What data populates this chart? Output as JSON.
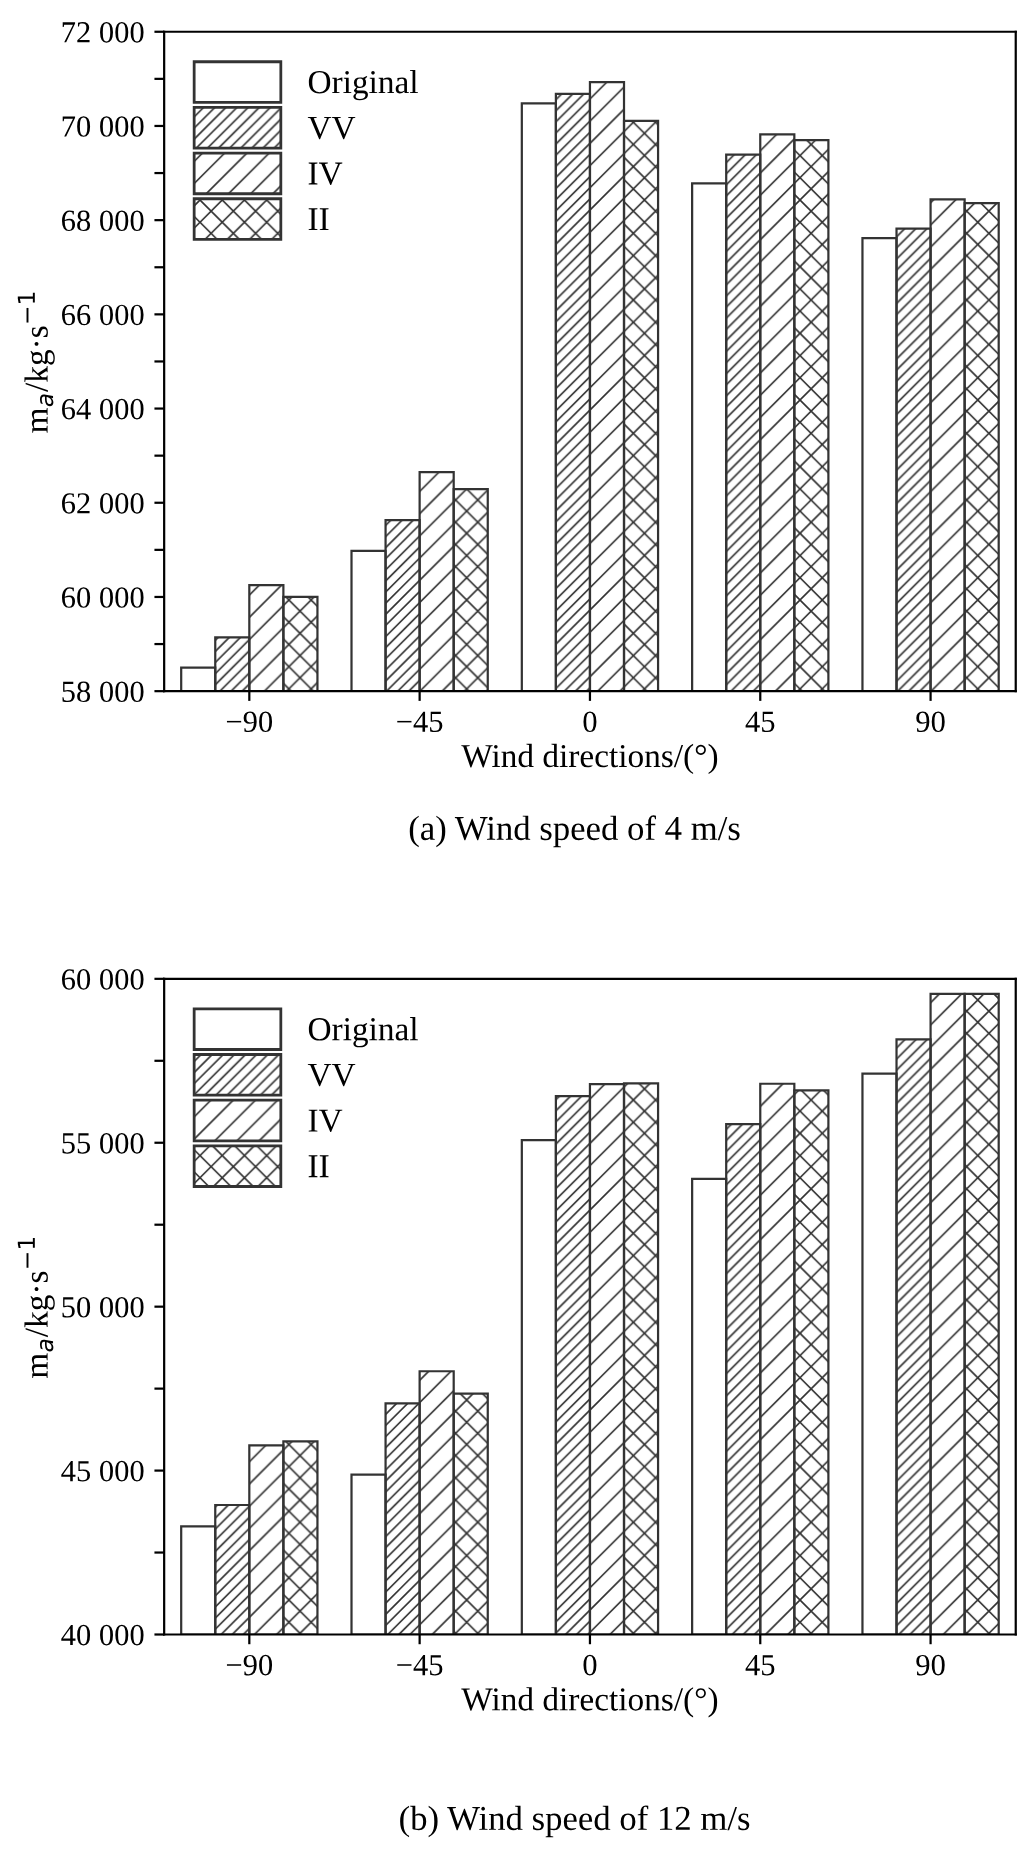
{
  "chart_data": [
    {
      "type": "bar",
      "categories": [
        "−90",
        "−45",
        "0",
        "45",
        "90"
      ],
      "xlabel": "Wind directions/(°)",
      "ylabel": "m$_{a}$/kg·s$^{−1}$",
      "series": [
        {
          "name": "Original",
          "color": "#ffffff",
          "values": [
            58500,
            60980,
            70480,
            68780,
            67620
          ]
        },
        {
          "name": "VV",
          "color": "#333333",
          "values": [
            59140,
            61630,
            70680,
            69390,
            67820
          ]
        },
        {
          "name": "IV",
          "color": "#333333",
          "values": [
            60250,
            62650,
            70930,
            69820,
            68440
          ]
        },
        {
          "name": "II",
          "color": "#333333",
          "values": [
            60000,
            62290,
            70110,
            69700,
            68360
          ]
        }
      ],
      "ylim": [
        58000,
        72000
      ],
      "yticks": [
        58000,
        {
          "value": 59000,
          "label": null
        },
        60000,
        {
          "value": 61000,
          "label": null
        },
        62000,
        {
          "value": 63000,
          "label": null
        },
        64000,
        {
          "value": 65000,
          "label": null
        },
        66000,
        {
          "value": 67000,
          "label": null
        },
        68000,
        {
          "value": 69000,
          "label": null
        },
        70000,
        {
          "value": 71000,
          "label": null
        },
        72000
      ],
      "legend": "top left",
      "grid": false,
      "annotations": [
        "(a) Wind speed of 4 m/s"
      ]
    },
    {
      "type": "bar",
      "categories": [
        "−90",
        "−45",
        "0",
        "45",
        "90"
      ],
      "xlabel": "Wind directions/(°)",
      "ylabel": "m$_{a}$/kg·s$^{−1}$",
      "series": [
        {
          "name": "Original",
          "color": "#ffffff",
          "values": [
            43300,
            44880,
            55080,
            53900,
            57110
          ]
        },
        {
          "name": "VV",
          "color": "#333333",
          "values": [
            43950,
            47050,
            56420,
            55570,
            58150
          ]
        },
        {
          "name": "IV",
          "color": "#333333",
          "values": [
            45770,
            48030,
            56790,
            56800,
            59540
          ]
        },
        {
          "name": "II",
          "color": "#333333",
          "values": [
            45890,
            47350,
            56810,
            56600,
            59540
          ]
        }
      ],
      "ylim": [
        40000,
        60000
      ],
      "yticks": [
        40000,
        {
          "value": 42500,
          "label": null
        },
        45000,
        {
          "value": 47500,
          "label": null
        },
        50000,
        {
          "value": 52500,
          "label": null
        },
        55000,
        {
          "value": 57500,
          "label": null
        },
        60000
      ],
      "legend": "top left",
      "grid": false,
      "annotations": [
        "(b) Wind speed of 12 m/s"
      ]
    }
  ]
}
